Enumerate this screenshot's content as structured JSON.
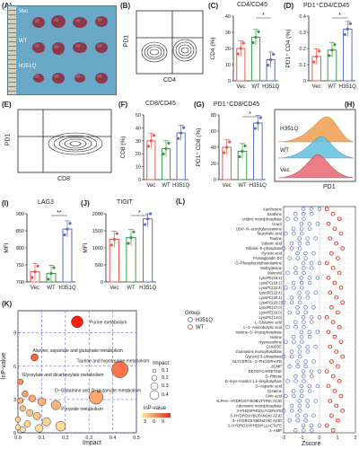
{
  "panels": {
    "A": {
      "label": "(A)",
      "groups": [
        "Vec",
        "WT",
        "H351Q"
      ]
    },
    "B": {
      "label": "(B)",
      "xlabel": "CD4",
      "ylabel": "PD1"
    },
    "C": {
      "label": "(C)",
      "title": "CD4/CD45",
      "ylabel": "CD4 (%)",
      "sig": "*"
    },
    "D": {
      "label": "(D)",
      "title": "PD1⁺CD4/CD45",
      "ylabel": "PD1⁺ CD4 (%)",
      "sig": "*"
    },
    "E": {
      "label": "(E)",
      "xlabel": "CD8",
      "ylabel": "PD1"
    },
    "F": {
      "label": "(F)",
      "title": "CD8/CD45",
      "ylabel": "CD8 (%)"
    },
    "G": {
      "label": "(G)",
      "title": "PD1⁺CD8/CD45",
      "ylabel": "PD1⁺ CD8 (%)",
      "sig": "*"
    },
    "H": {
      "label": "(H)",
      "xlabel": "PD1",
      "groups": [
        "H351Q",
        "WT",
        "Vec"
      ]
    },
    "I": {
      "label": "(I)",
      "title": "LAG3",
      "ylabel": "MFI",
      "sig": "**"
    },
    "J": {
      "label": "(J)",
      "title": "TIGIT",
      "ylabel": "MFI",
      "sig": "*"
    },
    "K": {
      "label": "(K)",
      "xlabel": "Impact",
      "ylabel": "lnP-value",
      "legend_impact_title": "Impact",
      "legend_impact_values": [
        "0.1",
        "0.2",
        "0.3",
        "0.4"
      ],
      "legend_p_title": "lnP-value",
      "legend_p_ticks": [
        "3",
        "6",
        "9"
      ],
      "annotations": [
        "Purine metabolism",
        "Alanine, aspartate and glutamate metabolism",
        "Taurine and hypotaurine metabolism",
        "Glyoxylate and dicarboxylate metabolism",
        "D−Glutamine and D−glutamate metabolism",
        "Pyruvate metabolism"
      ]
    },
    "L": {
      "label": "(L)",
      "xlabel": "Zscore",
      "legend_title": "Group",
      "legend_items": [
        "H351Q",
        "WT"
      ]
    }
  },
  "colors": {
    "Vec": "#e8584f",
    "WT": "#3a9a4a",
    "H351Q": "#5b6dc8",
    "red": "#e03c30",
    "blue": "#4b5fc0"
  },
  "chart_data": [
    {
      "type": "bar",
      "id": "C",
      "categories": [
        "Vec",
        "WT",
        "H351Q"
      ],
      "values": [
        20,
        27,
        13
      ],
      "ylim": [
        0,
        40
      ],
      "yticks": [
        0,
        10,
        20,
        30,
        40
      ]
    },
    {
      "type": "bar",
      "id": "D",
      "categories": [
        "Vec",
        "WT",
        "H351Q"
      ],
      "values": [
        0.15,
        0.19,
        0.32
      ],
      "ylim": [
        0,
        0.4
      ],
      "yticks": [
        0,
        0.1,
        0.2,
        0.3,
        0.4
      ]
    },
    {
      "type": "bar",
      "id": "F",
      "categories": [
        "Vec",
        "WT",
        "H351Q"
      ],
      "values": [
        30,
        24,
        36
      ],
      "ylim": [
        0,
        50
      ],
      "yticks": [
        0,
        10,
        20,
        30,
        40,
        50
      ]
    },
    {
      "type": "bar",
      "id": "G",
      "categories": [
        "Vec",
        "WT",
        "H351Q"
      ],
      "values": [
        40,
        35,
        70
      ],
      "ylim": [
        0,
        80
      ],
      "yticks": [
        0,
        20,
        40,
        60,
        80
      ]
    },
    {
      "type": "bar",
      "id": "I",
      "categories": [
        "Vec",
        "WT",
        "H351Q"
      ],
      "values": [
        730,
        725,
        855
      ],
      "ylim": [
        700,
        900
      ],
      "yticks": [
        700,
        750,
        800,
        850,
        900
      ]
    },
    {
      "type": "bar",
      "id": "J",
      "categories": [
        "Vec",
        "WT",
        "H351Q"
      ],
      "values": [
        1250,
        1300,
        1850
      ],
      "ylim": [
        0,
        2000
      ],
      "yticks": [
        0,
        500,
        1000,
        1500,
        2000
      ]
    },
    {
      "type": "scatter",
      "id": "K",
      "xlim": [
        0,
        0.5
      ],
      "ylim": [
        0,
        11
      ],
      "xticks": [
        0.0,
        0.1,
        0.2,
        0.3,
        0.4,
        0.5
      ],
      "yticks": [
        0,
        3,
        6,
        9
      ],
      "points": [
        {
          "x": 0.25,
          "y": 10.0,
          "name": "Purine metabolism"
        },
        {
          "x": 0.07,
          "y": 6.8,
          "name": "Alanine, aspartate and glutamate metabolism"
        },
        {
          "x": 0.43,
          "y": 5.7,
          "name": "Taurine and hypotaurine metabolism"
        },
        {
          "x": 0.01,
          "y": 4.6,
          "name": "Glyoxylate and dicarboxylate metabolism"
        },
        {
          "x": 0.33,
          "y": 3.2,
          "name": "D−Glutamine and D−glutamate metabolism"
        },
        {
          "x": 0.16,
          "y": 2.5,
          "name": "Pyruvate metabolism"
        },
        {
          "x": 0.03,
          "y": 3.5,
          "name": ""
        },
        {
          "x": 0.06,
          "y": 3.1,
          "name": ""
        },
        {
          "x": 0.1,
          "y": 2.8,
          "name": ""
        },
        {
          "x": 0.02,
          "y": 2.2,
          "name": ""
        },
        {
          "x": 0.05,
          "y": 1.8,
          "name": ""
        },
        {
          "x": 0.08,
          "y": 1.5,
          "name": ""
        },
        {
          "x": 0.0,
          "y": 1.2,
          "name": ""
        },
        {
          "x": 0.04,
          "y": 0.8,
          "name": ""
        },
        {
          "x": 0.12,
          "y": 1.0,
          "name": ""
        },
        {
          "x": 0.0,
          "y": 0.5,
          "name": ""
        },
        {
          "x": 0.02,
          "y": 0.3,
          "name": ""
        },
        {
          "x": 0.09,
          "y": 0.4,
          "name": ""
        },
        {
          "x": 0.18,
          "y": 0.6,
          "name": ""
        },
        {
          "x": 0.01,
          "y": 2.9,
          "name": ""
        }
      ]
    },
    {
      "type": "scatter",
      "id": "L",
      "xlim": [
        -2,
        2
      ],
      "xticks": [
        -2,
        -1,
        0,
        1,
        2
      ],
      "metabolites": [
        "Xanthosine",
        "Xanthine",
        "Uridine monophosphate",
        "Uracil",
        "UDP−N−acetylglucosamine",
        "Tauroholic acid",
        "Taurine",
        "Suberic acid",
        "Ribose−5−phosphate",
        "Pyruvic acid",
        "Prostaglandin D2",
        "O−Phosphorylethanolamine",
        "Methylamine",
        "Mannitol",
        "LysoPE(18:2)",
        "LysoPC(18:1)",
        "LysoPC(22:4)",
        "LysoPE(22:4)",
        "LysoPC(20:4)",
        "LysoPC(20:2)",
        "LysoPE(17:0)",
        "LysoPE(16:0)",
        "LysoPC(14:0)",
        "L−Glutamic acid",
        "L−2−Aminobutyric acid",
        "Inosine−5'−monophosphate",
        "Inosine",
        "Hypoxanthine",
        "GULOSE",
        "Guanosine monophosphate",
        "Glycerol 3−phosphate",
        "GLYCEROL−2−PHOSPHATE",
        "dGMP",
        "DEOXYCARNITINE",
        "D−Ribose",
        "D−myo−Inositol 1,4−bisphosphate",
        "D−Aspartic acid",
        "Creatine",
        "Citric acid",
        "ALPHA−HYDROXYISOBUTYRIC ACID",
        "Adenosine monophosphate",
        "3−PHOSPHOGLYCERATE",
        "3−HYDROXYBUTANOIC ACID",
        "3−HYDROXYBENZOIC ACID",
        "3−HYDROXYPHENYLLACTATE",
        "2−AMP"
      ]
    }
  ]
}
